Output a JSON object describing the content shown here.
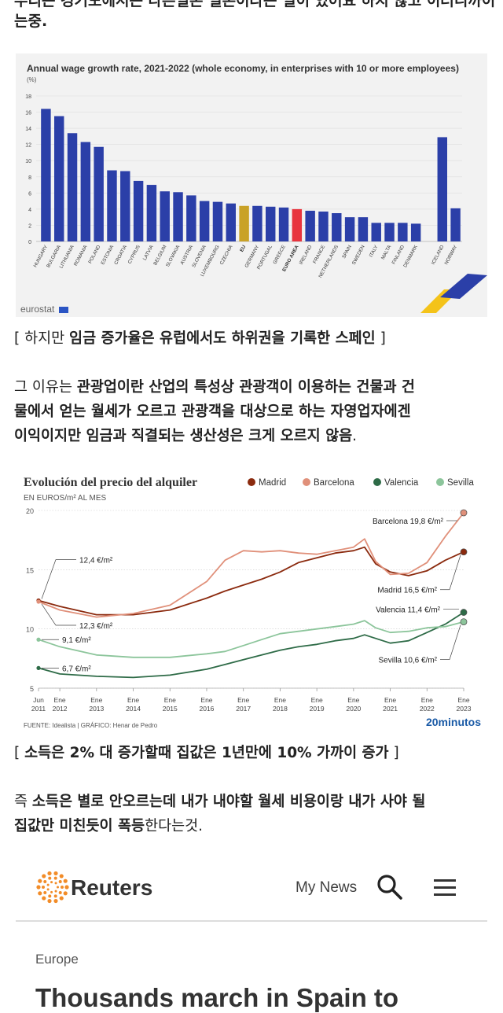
{
  "intro": {
    "line1": "우리는 경기도에서는 다른일본 일본이라는 일이 있어요 하지 않고 이러니까이",
    "line2": "는중."
  },
  "wage_chart": {
    "title": "Annual wage growth rate, 2021-2022 (whole economy, in enterprises with 10 or more employees)",
    "unit": "(%)",
    "source": "eurostat",
    "colors": {
      "default": "#2b3fa8",
      "eu": "#c9a227",
      "euro_area": "#e8343e"
    },
    "chart_data": {
      "type": "bar",
      "title": "Annual wage growth rate, 2021-2022 (whole economy, in enterprises with 10 or more employees)",
      "ylabel": "(%)",
      "ylim": [
        0,
        18
      ],
      "yticks": [
        0,
        2,
        4,
        6,
        8,
        10,
        12,
        14,
        16,
        18
      ],
      "categories": [
        "HUNGARY",
        "BULGARIA",
        "LITHUANIA",
        "ROMANIA",
        "POLAND",
        "ESTONIA",
        "CROATIA",
        "CYPRUS",
        "LATVIA",
        "BELGIUM",
        "SLOVAKIA",
        "AUSTRIA",
        "SLOVENIA",
        "LUXEMBOURG",
        "CZECHIA",
        "EU",
        "GERMANY",
        "PORTUGAL",
        "GREECE",
        "EURO AREA",
        "IRELAND",
        "FRANCE",
        "NETHERLANDS",
        "SPAIN",
        "SWEDEN",
        "ITALY",
        "MALTA",
        "FINLAND",
        "DENMARK",
        "",
        "ICELAND",
        "NORWAY"
      ],
      "values": [
        16.4,
        15.5,
        13.4,
        12.3,
        11.7,
        8.8,
        8.7,
        7.5,
        7.0,
        6.2,
        6.1,
        5.7,
        5.0,
        4.9,
        4.7,
        4.4,
        4.4,
        4.3,
        4.2,
        4.0,
        3.8,
        3.7,
        3.5,
        3.0,
        3.0,
        2.3,
        2.3,
        2.3,
        2.2,
        null,
        12.9,
        4.1
      ]
    }
  },
  "caption1": {
    "pre": "[ 하지만 ",
    "bold": "임금 증가율은 유럽에서도 하위권을 기록한 스페인",
    "post": " ]"
  },
  "para1": {
    "l1_pre": "그 이유는 ",
    "l1_bold": "관광업이란 산업의 특성상 관광객이 이용하는 건물과 건",
    "l2_bold": "물에서 얻는 월세가 오르고 관광객을 대상으로 하는 자영업자에겐",
    "l3_bold": "이익이지만 임금과 직결되는 생산성은 크게 오르지 않음",
    "l3_post": "."
  },
  "rent_chart": {
    "title": "Evolución del precio del alquiler",
    "subtitle": "EN EUROS/m² AL MES",
    "source": "FUENTE: Idealista  |  GRÁFICO: Henar de Pedro",
    "brand": "20minutos",
    "colors": {
      "Madrid": "#8b2a0e",
      "Barcelona": "#e0907a",
      "Valencia": "#2e6b47",
      "Sevilla": "#8cc59b"
    },
    "annotations": {
      "madrid_start": "12,4 €/m²",
      "barcelona_start": "12,3 €/m²",
      "sevilla_start": "9,1 €/m²",
      "valencia_start": "6,7 €/m²",
      "barcelona_end": "Barcelona 19,8 €/m²",
      "madrid_end": "Madrid 16,5 €/m²",
      "valencia_end": "Valencia 11,4 €/m²",
      "sevilla_end": "Sevilla 10,6 €/m²"
    },
    "chart_data": {
      "type": "line",
      "title": "Evolución del precio del alquiler",
      "ylabel": "EN EUROS/m² AL MES",
      "ylim": [
        5,
        20
      ],
      "yticks": [
        5,
        10,
        15,
        20
      ],
      "xticks": [
        [
          "Jun",
          "2011"
        ],
        [
          "Ene",
          "2012"
        ],
        [
          "Ene",
          "2013"
        ],
        [
          "Ene",
          "2014"
        ],
        [
          "Ene",
          "2015"
        ],
        [
          "Ene",
          "2016"
        ],
        [
          "Ene",
          "2017"
        ],
        [
          "Ene",
          "2018"
        ],
        [
          "Ene",
          "2019"
        ],
        [
          "Ene",
          "2020"
        ],
        [
          "Ene",
          "2021"
        ],
        [
          "Ene",
          "2022"
        ],
        [
          "Ene",
          "2023"
        ]
      ],
      "x": [
        2011.42,
        2012,
        2013,
        2014,
        2015,
        2016,
        2016.5,
        2017,
        2017.5,
        2018,
        2018.5,
        2019,
        2019.5,
        2020,
        2020.3,
        2020.6,
        2021,
        2021.5,
        2022,
        2022.5,
        2023
      ],
      "series": [
        {
          "name": "Madrid",
          "values": [
            12.4,
            11.9,
            11.2,
            11.2,
            11.6,
            12.6,
            13.2,
            13.7,
            14.2,
            14.8,
            15.6,
            16.0,
            16.4,
            16.6,
            16.9,
            15.5,
            14.8,
            14.5,
            14.9,
            15.8,
            16.5
          ]
        },
        {
          "name": "Barcelona",
          "values": [
            12.3,
            11.6,
            11.0,
            11.3,
            12.0,
            14.0,
            15.8,
            16.6,
            16.5,
            16.6,
            16.4,
            16.3,
            16.6,
            16.9,
            17.6,
            15.7,
            14.6,
            14.7,
            15.6,
            17.8,
            19.8
          ]
        },
        {
          "name": "Valencia",
          "values": [
            6.7,
            6.2,
            6.0,
            5.9,
            6.1,
            6.6,
            7.0,
            7.4,
            7.8,
            8.2,
            8.5,
            8.7,
            9.0,
            9.2,
            9.5,
            9.2,
            8.8,
            9.0,
            9.7,
            10.4,
            11.4
          ]
        },
        {
          "name": "Sevilla",
          "values": [
            9.1,
            8.5,
            7.8,
            7.6,
            7.6,
            7.9,
            8.1,
            8.6,
            9.1,
            9.6,
            9.8,
            10.0,
            10.2,
            10.4,
            10.7,
            10.1,
            9.7,
            9.8,
            10.1,
            10.2,
            10.6
          ]
        }
      ]
    }
  },
  "caption2": {
    "pre": "[ ",
    "bold": "소득은 2% 대 증가할때 집값은 1년만에 10% 가까이 증가",
    "post": " ]"
  },
  "para2": {
    "l1_pre": "즉 ",
    "l1_bold": "소득은 별로 안오르는데 내가 내야할 월세 비용이랑 내가 사야 될",
    "l2_bold": "집값만 미친듯이 폭등",
    "l2_post": "한다는것."
  },
  "reuters": {
    "brand": "Reuters",
    "my_news": "My News",
    "section": "Europe",
    "headline": "Thousands march in Spain to"
  }
}
